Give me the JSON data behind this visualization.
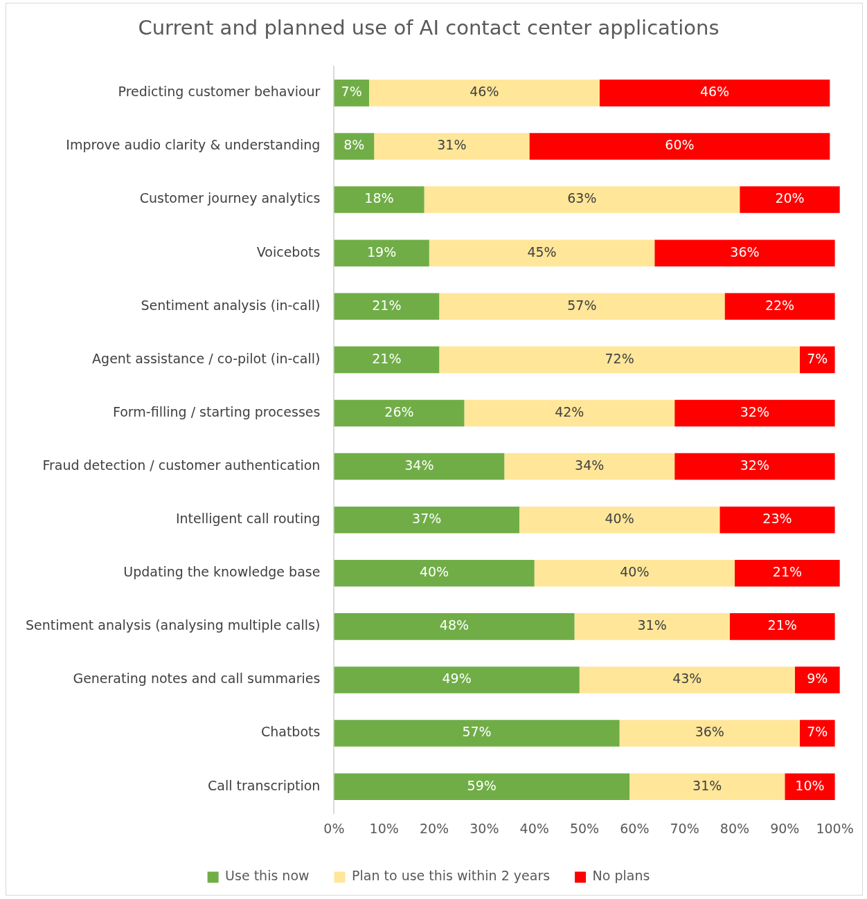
{
  "chart_data": {
    "type": "bar",
    "orientation": "horizontal",
    "stacked": true,
    "title": "Current and planned use of AI contact center applications",
    "categories": [
      "Predicting customer behaviour",
      "Improve audio clarity & understanding",
      "Customer journey analytics",
      "Voicebots",
      "Sentiment analysis (in-call)",
      "Agent assistance / co-pilot (in-call)",
      "Form-filling / starting processes",
      "Fraud detection / customer authentication",
      "Intelligent call routing",
      "Updating the knowledge base",
      "Sentiment analysis (analysing multiple calls)",
      "Generating notes and call summaries",
      "Chatbots",
      "Call transcription"
    ],
    "series": [
      {
        "name": "Use this now",
        "color": "#70ad47",
        "values": [
          7,
          8,
          18,
          19,
          21,
          21,
          26,
          34,
          37,
          40,
          48,
          49,
          57,
          59
        ],
        "value_labels": [
          "7%",
          "8%",
          "18%",
          "19%",
          "21%",
          "21%",
          "26%",
          "34%",
          "37%",
          "40%",
          "48%",
          "49%",
          "57%",
          "59%"
        ]
      },
      {
        "name": "Plan to use this within 2 years",
        "color": "#ffe699",
        "values": [
          46,
          31,
          63,
          45,
          57,
          72,
          42,
          34,
          40,
          40,
          31,
          43,
          36,
          31
        ],
        "value_labels": [
          "46%",
          "31%",
          "63%",
          "45%",
          "57%",
          "72%",
          "42%",
          "34%",
          "40%",
          "40%",
          "31%",
          "43%",
          "36%",
          "31%"
        ]
      },
      {
        "name": "No plans",
        "color": "#ff0000",
        "values": [
          46,
          60,
          20,
          36,
          22,
          7,
          32,
          32,
          23,
          21,
          21,
          9,
          7,
          10
        ],
        "value_labels": [
          "46%",
          "60%",
          "20%",
          "36%",
          "22%",
          "7%",
          "32%",
          "32%",
          "23%",
          "21%",
          "21%",
          "9%",
          "7%",
          "10%"
        ]
      }
    ],
    "xlim": [
      0,
      101
    ],
    "xticks": [
      {
        "value": 0,
        "label": "0%"
      },
      {
        "value": 10,
        "label": "10%"
      },
      {
        "value": 20,
        "label": "20%"
      },
      {
        "value": 30,
        "label": "30%"
      },
      {
        "value": 40,
        "label": "40%"
      },
      {
        "value": 50,
        "label": "50%"
      },
      {
        "value": 60,
        "label": "60%"
      },
      {
        "value": 70,
        "label": "70%"
      },
      {
        "value": 80,
        "label": "80%"
      },
      {
        "value": 90,
        "label": "90%"
      },
      {
        "value": 100,
        "label": "100%"
      }
    ],
    "grid": false,
    "legend": "bottom"
  }
}
